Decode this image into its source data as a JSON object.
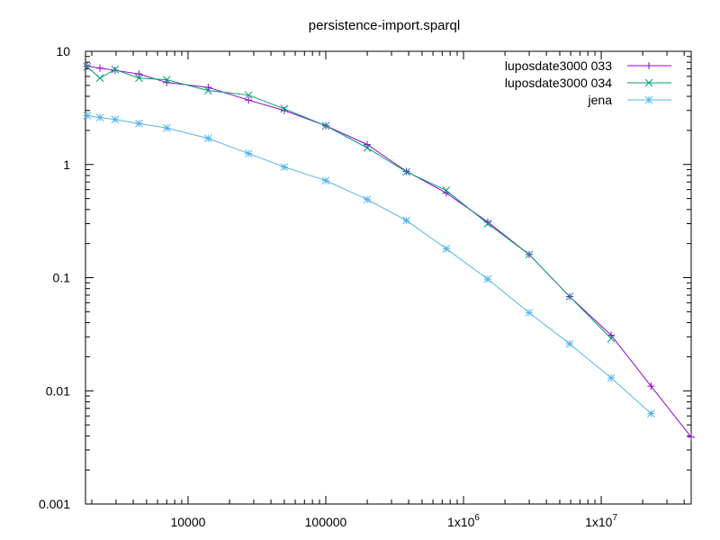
{
  "chart_data": {
    "type": "line",
    "title": "persistence-import.sparql",
    "xlabel": "",
    "ylabel": "",
    "x_scale": "log",
    "y_scale": "log",
    "xlim": [
      1800,
      45000000
    ],
    "ylim": [
      0.001,
      10
    ],
    "x_ticks": [
      {
        "value": 10000,
        "label": "10000"
      },
      {
        "value": 100000,
        "label": "100000"
      },
      {
        "value": 1000000,
        "label": "1x10",
        "exp": "6"
      },
      {
        "value": 10000000,
        "label": "1x10",
        "exp": "7"
      }
    ],
    "y_ticks": [
      {
        "value": 10,
        "label": "10"
      },
      {
        "value": 1,
        "label": "1"
      },
      {
        "value": 0.1,
        "label": "0.1"
      },
      {
        "value": 0.01,
        "label": "0.01"
      },
      {
        "value": 0.001,
        "label": "0.001"
      }
    ],
    "grid": false,
    "legend_position": "top-right",
    "series": [
      {
        "name": "luposdate3000 033",
        "color": "#9400d3",
        "marker": "plus",
        "x": [
          1850,
          2290,
          2950,
          4400,
          7000,
          14000,
          27500,
          50000,
          100000,
          200000,
          385000,
          750000,
          1500000,
          3000000,
          5900000,
          11800000,
          23000000,
          45000000
        ],
        "y": [
          7.4,
          7.1,
          6.8,
          6.3,
          5.3,
          4.8,
          3.7,
          3.0,
          2.2,
          1.5,
          0.87,
          0.56,
          0.31,
          0.16,
          0.068,
          0.031,
          0.011,
          0.0039
        ]
      },
      {
        "name": "luposdate3000 034",
        "color": "#009e73",
        "marker": "cross",
        "x": [
          1850,
          2290,
          2950,
          4400,
          7000,
          14000,
          27500,
          50000,
          100000,
          200000,
          385000,
          750000,
          1500000,
          3000000,
          5900000,
          11800000
        ],
        "y": [
          7.3,
          5.8,
          6.9,
          5.8,
          5.6,
          4.5,
          4.1,
          3.1,
          2.2,
          1.4,
          0.86,
          0.59,
          0.3,
          0.16,
          0.068,
          0.029
        ]
      },
      {
        "name": "jena",
        "color": "#56b4e9",
        "marker": "star",
        "x": [
          1850,
          2290,
          2950,
          4400,
          7000,
          14000,
          27500,
          50000,
          100000,
          200000,
          385000,
          750000,
          1500000,
          3000000,
          5900000,
          11800000,
          23000000
        ],
        "y": [
          2.7,
          2.6,
          2.5,
          2.3,
          2.1,
          1.7,
          1.25,
          0.95,
          0.72,
          0.49,
          0.32,
          0.18,
          0.097,
          0.049,
          0.026,
          0.013,
          0.0063
        ]
      }
    ]
  }
}
